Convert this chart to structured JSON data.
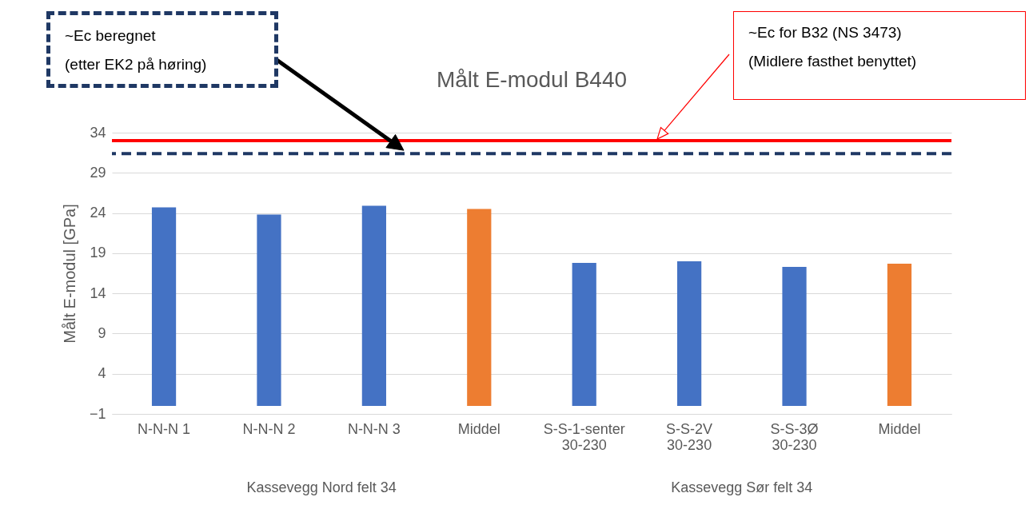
{
  "chart_data": {
    "type": "bar",
    "title": "Målt E-modul B440",
    "ylabel": "Målt E-modul [GPa]",
    "categories": [
      "N-N-N 1",
      "N-N-N 2",
      "N-N-N 3",
      "Middel",
      "S-S-1-senter 30-230",
      "S-S-2V 30-230",
      "S-S-3Ø 30-230",
      "Middel"
    ],
    "values": [
      24.7,
      23.8,
      24.9,
      24.5,
      17.8,
      18.0,
      17.3,
      17.7
    ],
    "colors": [
      "#4472c4",
      "#4472c4",
      "#4472c4",
      "#ed7d31",
      "#4472c4",
      "#4472c4",
      "#4472c4",
      "#ed7d31"
    ],
    "ylim": [
      -1,
      34
    ],
    "yticks": [
      -1,
      4,
      9,
      14,
      19,
      24,
      29,
      34
    ],
    "grid": "y",
    "ref_lines": [
      {
        "axis": "y",
        "value": 31.4,
        "color": "#1f3864",
        "line_style": "dashed"
      },
      {
        "axis": "y",
        "value": 33.0,
        "color": "#ff0000",
        "line_style": "solid"
      }
    ],
    "annotations": [
      "~Ec beregnet\n(etter EK2 på høring)",
      "~Ec for B32 (NS 3473)\n(Midlere fasthet benyttet)",
      "Kassevegg Nord felt 34",
      "Kassevegg Sør felt 34"
    ]
  }
}
